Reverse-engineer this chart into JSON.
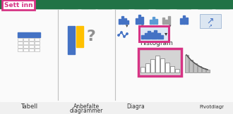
{
  "bg_color": "#e8e8e8",
  "ribbon_green": "#217346",
  "tab_label": "Sett inn",
  "highlight_color": "#d63384",
  "tabell_label": "Tabell",
  "anbefalte_line1": "Anbefalte",
  "anbefalte_line2": "diagrammer",
  "histogram_label": "Histogram",
  "diagra_label": "Diagra",
  "pivotdiagr_label": "Pivotdiagr",
  "blue1": "#4472c4",
  "blue2": "#5b9bd5",
  "yellow1": "#ffc000",
  "green1": "#70ad47",
  "gray_icon": "#a0a0a0",
  "gray_light": "#c8c8c8",
  "gray_mid": "#b0b0b0",
  "white": "#ffffff",
  "section_divider": "#c0c0c0",
  "body_bg": "#f0f0f0",
  "section_white": "#fafafa"
}
